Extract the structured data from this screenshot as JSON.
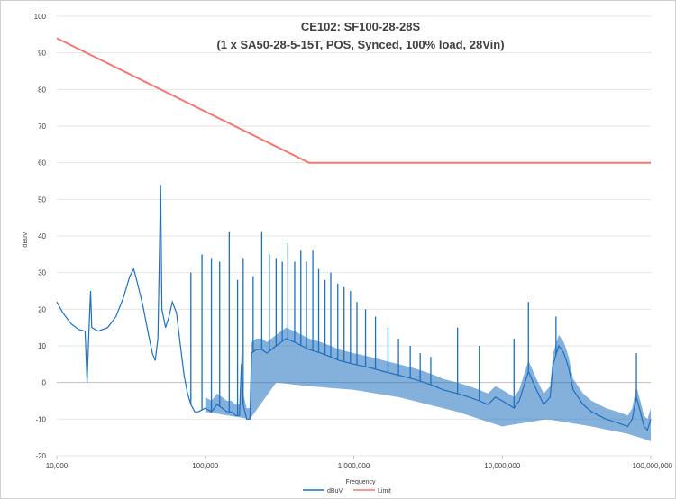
{
  "chart_data": {
    "type": "line",
    "title_line1": "CE102: SF100-28-28S",
    "title_line2": "(1 x SA50-28-5-15T, POS, Synced, 100% load, 28Vin)",
    "xlabel": "Frequency",
    "ylabel": "dBuV",
    "x_scale": "log",
    "xlim": [
      10000,
      100000000
    ],
    "ylim": [
      -20,
      100
    ],
    "y_ticks": [
      "-20",
      "-10",
      "0",
      "10",
      "20",
      "30",
      "40",
      "50",
      "60",
      "70",
      "80",
      "90",
      "100"
    ],
    "x_ticks": [
      {
        "value": 10000,
        "label": "10,000"
      },
      {
        "value": 100000,
        "label": "100,000"
      },
      {
        "value": 1000000,
        "label": "1,000,000"
      },
      {
        "value": 10000000,
        "label": "10,000,000"
      },
      {
        "value": 100000000,
        "label": "100,000,000"
      }
    ],
    "grid": "horizontal",
    "legend_position": "bottom",
    "series": [
      {
        "name": "dBuV",
        "color": "#1f6fbf",
        "points": [
          [
            10000,
            22
          ],
          [
            11000,
            19
          ],
          [
            12500,
            16
          ],
          [
            14000,
            14.5
          ],
          [
            15500,
            14
          ],
          [
            16500,
            15
          ],
          [
            16900,
            25
          ],
          [
            17200,
            15
          ],
          [
            19000,
            14
          ],
          [
            22000,
            15
          ],
          [
            25000,
            18
          ],
          [
            28000,
            23
          ],
          [
            31000,
            29
          ],
          [
            33000,
            31
          ],
          [
            35000,
            27
          ],
          [
            38000,
            21
          ],
          [
            41000,
            14
          ],
          [
            44000,
            8
          ],
          [
            46000,
            6
          ],
          [
            48000,
            12
          ],
          [
            50000,
            54
          ],
          [
            51000,
            20
          ],
          [
            54000,
            15
          ],
          [
            57000,
            18
          ],
          [
            60000,
            22
          ],
          [
            64000,
            19
          ],
          [
            68000,
            10
          ],
          [
            72000,
            2
          ],
          [
            76000,
            -3
          ],
          [
            80000,
            -6
          ],
          [
            85000,
            -8
          ],
          [
            90000,
            -8
          ],
          [
            100000,
            -7
          ],
          [
            110000,
            -8
          ],
          [
            120000,
            -6
          ],
          [
            130000,
            -7
          ],
          [
            140000,
            -8
          ],
          [
            150000,
            -8
          ],
          [
            160000,
            -9
          ],
          [
            170000,
            -9
          ],
          [
            175000,
            5
          ],
          [
            180000,
            -6
          ],
          [
            190000,
            -10
          ],
          [
            200000,
            -10
          ],
          [
            205000,
            8
          ],
          [
            220000,
            9
          ],
          [
            240000,
            9
          ],
          [
            260000,
            8
          ],
          [
            300000,
            10
          ],
          [
            350000,
            12
          ],
          [
            400000,
            11
          ],
          [
            500000,
            9
          ],
          [
            600000,
            8
          ],
          [
            700000,
            7
          ],
          [
            800000,
            6
          ],
          [
            1000000,
            5
          ],
          [
            1300000,
            4
          ],
          [
            1600000,
            3
          ],
          [
            2000000,
            2
          ],
          [
            2500000,
            1
          ],
          [
            3000000,
            0
          ],
          [
            3500000,
            -1
          ],
          [
            4000000,
            -2
          ],
          [
            5000000,
            -3
          ],
          [
            6000000,
            -4
          ],
          [
            7000000,
            -5
          ],
          [
            8000000,
            -6
          ],
          [
            9000000,
            -4
          ],
          [
            10000000,
            -5
          ],
          [
            11000000,
            -6
          ],
          [
            12000000,
            -7
          ],
          [
            13000000,
            -5
          ],
          [
            15000000,
            3
          ],
          [
            16000,
            0
          ],
          [
            17000000,
            -2
          ],
          [
            19000000,
            -6
          ],
          [
            21000000,
            -4
          ],
          [
            22000000,
            5
          ],
          [
            24000000,
            10
          ],
          [
            26000000,
            8
          ],
          [
            28000000,
            4
          ],
          [
            30000000,
            -2
          ],
          [
            35000000,
            -6
          ],
          [
            40000000,
            -8
          ],
          [
            50000000,
            -10
          ],
          [
            60000000,
            -11
          ],
          [
            70000000,
            -12
          ],
          [
            75000000,
            -10
          ],
          [
            80000000,
            -4
          ],
          [
            85000000,
            -8
          ],
          [
            90000000,
            -12
          ],
          [
            95000000,
            -13
          ],
          [
            100000000,
            -10
          ]
        ],
        "peaks": [
          [
            16900,
            25
          ],
          [
            50000,
            54
          ],
          [
            60000,
            22
          ],
          [
            80000,
            30
          ],
          [
            95000,
            35
          ],
          [
            110000,
            34
          ],
          [
            125000,
            33
          ],
          [
            145000,
            41
          ],
          [
            165000,
            28
          ],
          [
            180000,
            34
          ],
          [
            210000,
            29
          ],
          [
            240000,
            41
          ],
          [
            270000,
            35
          ],
          [
            300000,
            34
          ],
          [
            330000,
            33
          ],
          [
            360000,
            38
          ],
          [
            400000,
            33
          ],
          [
            440000,
            36
          ],
          [
            480000,
            33
          ],
          [
            530000,
            36
          ],
          [
            580000,
            31
          ],
          [
            640000,
            28
          ],
          [
            700000,
            30
          ],
          [
            780000,
            27
          ],
          [
            860000,
            26
          ],
          [
            950000,
            25
          ],
          [
            1050000,
            22
          ],
          [
            1200000,
            20
          ],
          [
            1400000,
            18
          ],
          [
            1700000,
            15
          ],
          [
            2000000,
            12
          ],
          [
            2400000,
            10
          ],
          [
            2800000,
            8
          ],
          [
            3300000,
            7
          ],
          [
            5000000,
            15
          ],
          [
            7000000,
            10
          ],
          [
            12000000,
            12
          ],
          [
            15000000,
            22
          ],
          [
            23000000,
            18
          ],
          [
            80000000,
            8
          ]
        ],
        "envelope_low": [
          [
            100000,
            -8
          ],
          [
            200000,
            -10
          ],
          [
            300000,
            0
          ],
          [
            500000,
            -1
          ],
          [
            1000000,
            -2
          ],
          [
            2000000,
            -4
          ],
          [
            5000000,
            -8
          ],
          [
            10000000,
            -12
          ],
          [
            20000000,
            -10
          ],
          [
            40000000,
            -12
          ],
          [
            70000000,
            -14
          ],
          [
            100000000,
            -16
          ]
        ]
      },
      {
        "name": "Limit",
        "color": "#f07a75",
        "points": [
          [
            10000,
            94
          ],
          [
            500000,
            60
          ],
          [
            100000000,
            60
          ]
        ]
      }
    ]
  }
}
